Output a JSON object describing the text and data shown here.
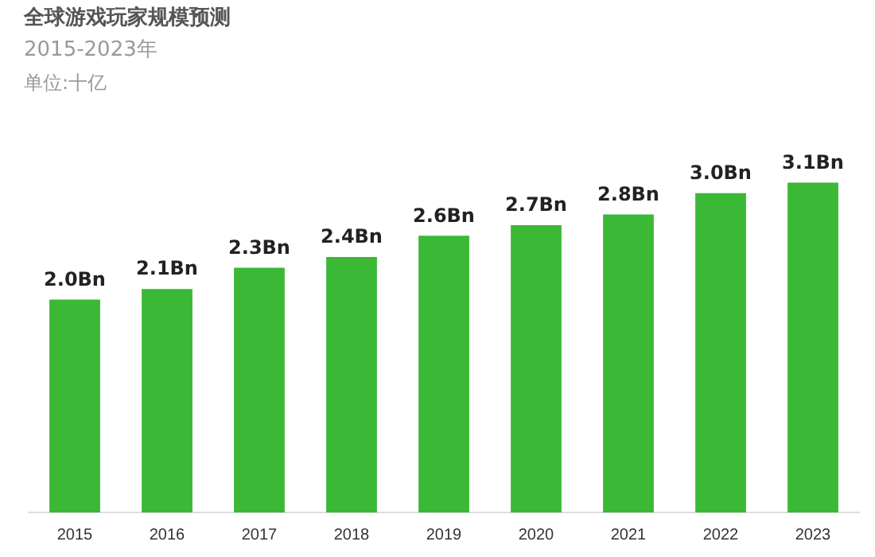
{
  "chart_data": {
    "type": "bar",
    "title": "全球游戏玩家规模预测",
    "subtitle": "2015-2023年",
    "annotations": [
      "单位:十亿"
    ],
    "categories": [
      "2015",
      "2016",
      "2017",
      "2018",
      "2019",
      "2020",
      "2021",
      "2022",
      "2023"
    ],
    "values": [
      2.0,
      2.1,
      2.3,
      2.4,
      2.6,
      2.7,
      2.8,
      3.0,
      3.1
    ],
    "value_labels": [
      "2.0Bn",
      "2.1Bn",
      "2.3Bn",
      "2.4Bn",
      "2.6Bn",
      "2.7Bn",
      "2.8Bn",
      "3.0Bn",
      "3.1Bn"
    ],
    "color": "#3bb836",
    "relative": false,
    "legend": false,
    "grid": false
  }
}
